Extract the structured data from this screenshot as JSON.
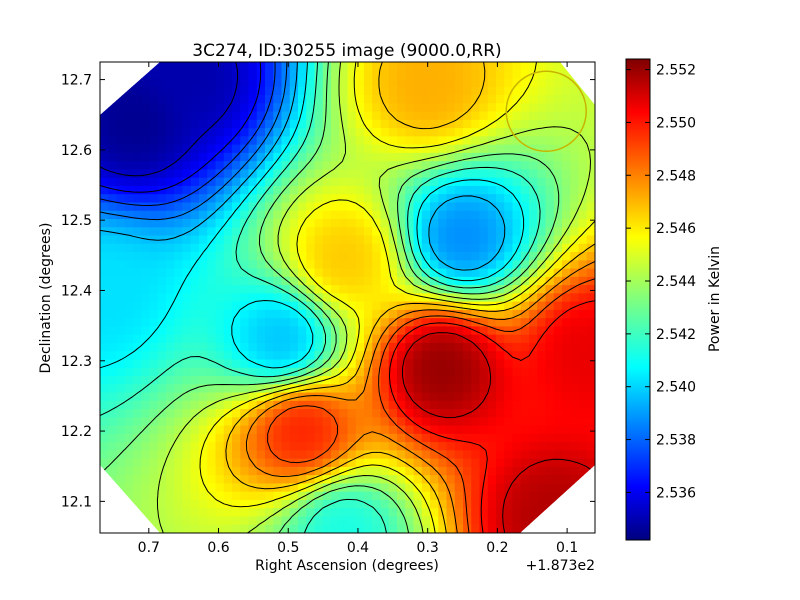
{
  "chart_data": {
    "type": "heatmap",
    "title": "3C274, ID:30255 image (9000.0,RR)",
    "xlabel": "Right Ascension (degrees)",
    "ylabel": "Declination (degrees)",
    "x_offset_label": "+1.873e2",
    "xlim": [
      0.77,
      0.06
    ],
    "ylim": [
      12.055,
      12.725
    ],
    "x_ticks": [
      {
        "value": 0.7,
        "label": "0.7"
      },
      {
        "value": 0.6,
        "label": "0.6"
      },
      {
        "value": 0.5,
        "label": "0.5"
      },
      {
        "value": 0.4,
        "label": "0.4"
      },
      {
        "value": 0.3,
        "label": "0.3"
      },
      {
        "value": 0.2,
        "label": "0.2"
      },
      {
        "value": 0.1,
        "label": "0.1"
      }
    ],
    "y_ticks": [
      {
        "value": 12.1,
        "label": "12.1"
      },
      {
        "value": 12.2,
        "label": "12.2"
      },
      {
        "value": 12.3,
        "label": "12.3"
      },
      {
        "value": 12.4,
        "label": "12.4"
      },
      {
        "value": 12.5,
        "label": "12.5"
      },
      {
        "value": 12.6,
        "label": "12.6"
      },
      {
        "value": 12.7,
        "label": "12.7"
      }
    ],
    "colorbar": {
      "label": "Power in Kelvin",
      "colormap": "jet",
      "vmin": 2.5342,
      "vmax": 2.5524,
      "ticks": [
        {
          "value": 2.536,
          "label": "2.536"
        },
        {
          "value": 2.538,
          "label": "2.538"
        },
        {
          "value": 2.54,
          "label": "2.540"
        },
        {
          "value": 2.542,
          "label": "2.542"
        },
        {
          "value": 2.544,
          "label": "2.544"
        },
        {
          "value": 2.546,
          "label": "2.546"
        },
        {
          "value": 2.548,
          "label": "2.548"
        },
        {
          "value": 2.55,
          "label": "2.550"
        },
        {
          "value": 2.552,
          "label": "2.552"
        }
      ]
    },
    "beam_circle": {
      "ra": 0.13,
      "dec": 12.655,
      "color": "#c8b400"
    },
    "features": [
      {
        "ra": 0.28,
        "dec": 12.29,
        "value": 2.552,
        "kind": "peak"
      },
      {
        "ra": 0.12,
        "dec": 12.08,
        "value": 2.5515,
        "kind": "peak"
      },
      {
        "ra": 0.07,
        "dec": 12.31,
        "value": 2.5505,
        "kind": "peak"
      },
      {
        "ra": 0.3,
        "dec": 12.69,
        "value": 2.547,
        "kind": "peak"
      },
      {
        "ra": 0.48,
        "dec": 12.2,
        "value": 2.5495,
        "kind": "peak"
      },
      {
        "ra": 0.42,
        "dec": 12.445,
        "value": 2.5465,
        "kind": "peak"
      },
      {
        "ra": 0.25,
        "dec": 12.475,
        "value": 2.539,
        "kind": "trough"
      },
      {
        "ra": 0.72,
        "dec": 12.64,
        "value": 2.5345,
        "kind": "trough"
      },
      {
        "ra": 0.64,
        "dec": 12.7,
        "value": 2.535,
        "kind": "trough"
      },
      {
        "ra": 0.51,
        "dec": 12.33,
        "value": 2.54,
        "kind": "trough"
      },
      {
        "ra": 0.77,
        "dec": 12.4,
        "value": 2.5405,
        "kind": "trough"
      },
      {
        "ra": 0.42,
        "dec": 12.06,
        "value": 2.5415,
        "kind": "trough"
      }
    ]
  }
}
